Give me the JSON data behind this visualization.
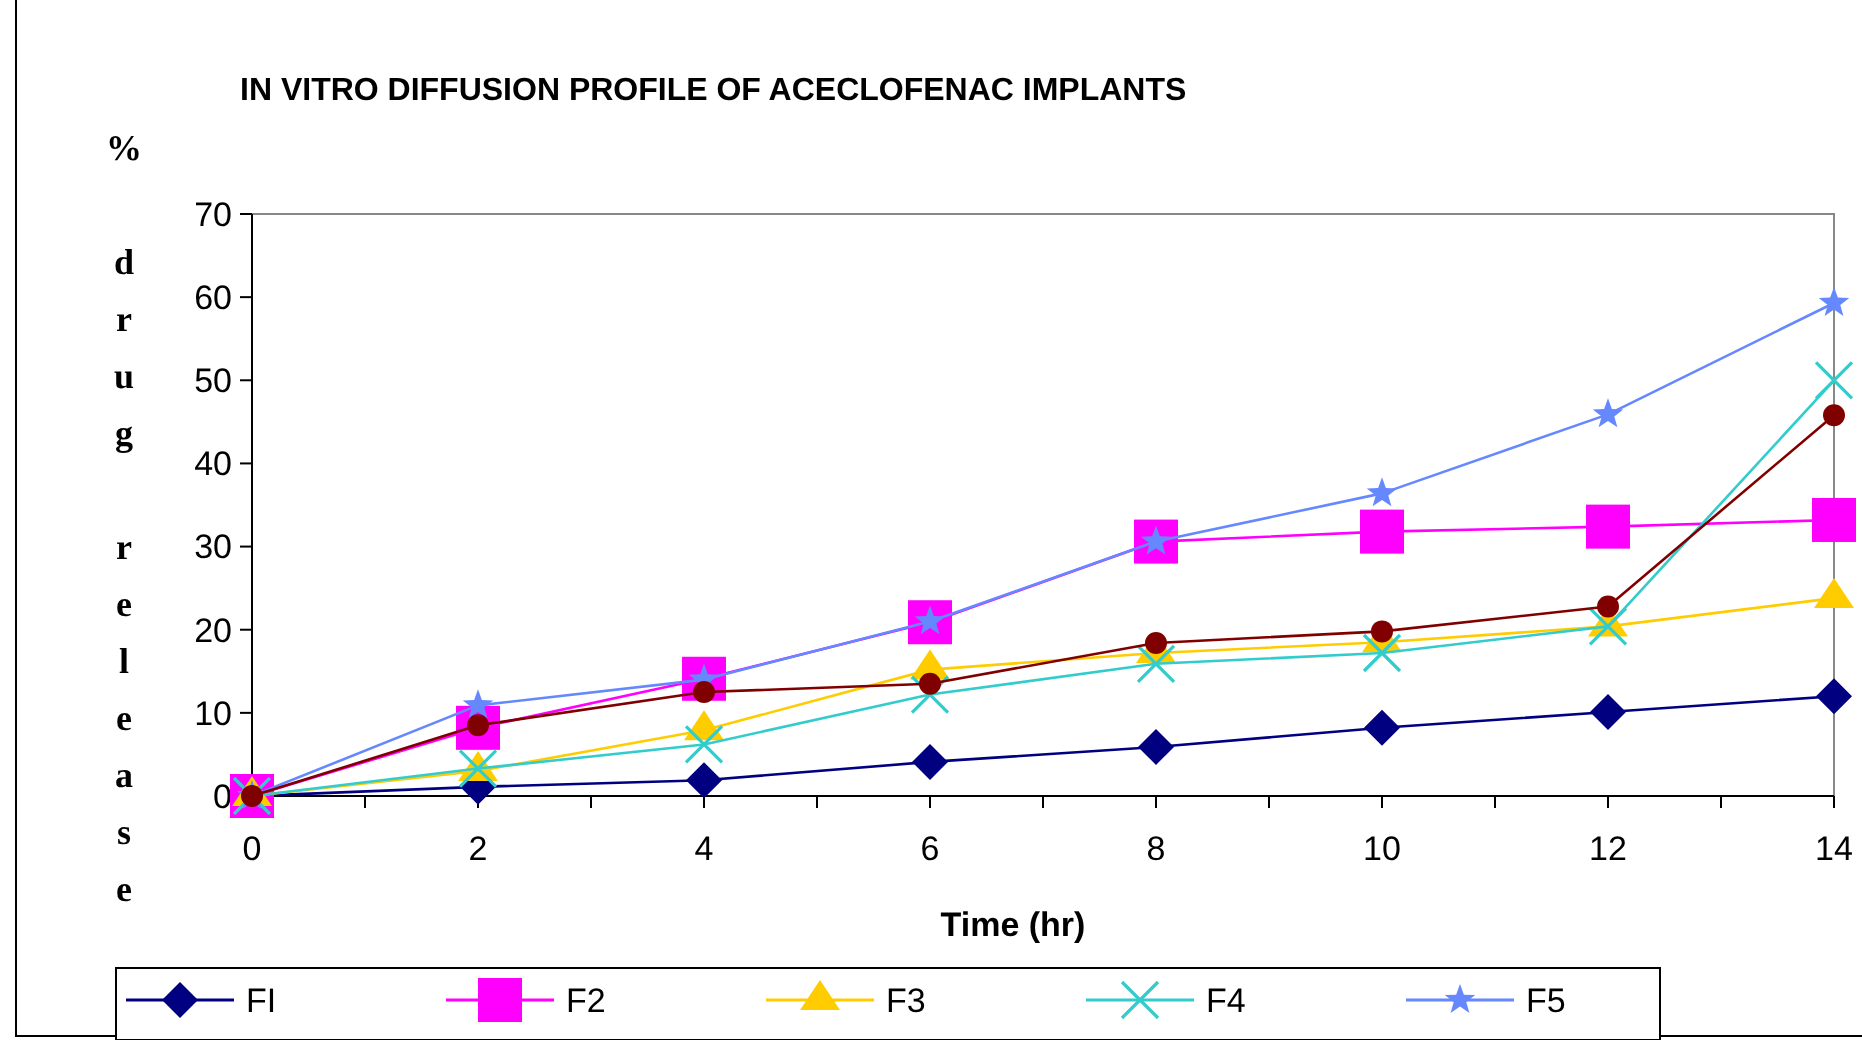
{
  "chart_data": {
    "type": "line",
    "title": "IN VITRO DIFFUSION PROFILE OF ACECLOFENAC IMPLANTS",
    "xlabel": "Time (hr)",
    "ylabel": "% drug release",
    "x": [
      0,
      2,
      4,
      6,
      8,
      10,
      12,
      14
    ],
    "xlim": [
      0,
      14
    ],
    "xticks": [
      0,
      {
        "value": 1,
        "label": null
      },
      2,
      {
        "value": 3,
        "label": null
      },
      4,
      {
        "value": 5,
        "label": null
      },
      6,
      {
        "value": 7,
        "label": null
      },
      8,
      {
        "value": 9,
        "label": null
      },
      10,
      {
        "value": 11,
        "label": null
      },
      12,
      {
        "value": 13,
        "label": null
      },
      14
    ],
    "ylim": [
      0,
      70
    ],
    "yticks": [
      0,
      10,
      20,
      30,
      40,
      50,
      60,
      70
    ],
    "grid": false,
    "legend": "bottom",
    "line_style": "solid",
    "series": [
      {
        "name": "FI",
        "color": "#000080",
        "marker": "diamond",
        "values": [
          0,
          1.1,
          1.9,
          4.1,
          5.9,
          8.2,
          10.1,
          12.0
        ]
      },
      {
        "name": "F2",
        "color": "#ff00ff",
        "marker": "square",
        "values": [
          0,
          8.2,
          14.1,
          20.9,
          30.6,
          31.8,
          32.4,
          33.2
        ]
      },
      {
        "name": "F3",
        "color": "#ffcc00",
        "marker": "triangle",
        "values": [
          0,
          3.0,
          7.9,
          15.2,
          17.2,
          18.5,
          20.4,
          23.8
        ]
      },
      {
        "name": "F4",
        "color": "#33cccc",
        "marker": "cross",
        "values": [
          0,
          3.3,
          6.2,
          12.2,
          15.9,
          17.2,
          20.4,
          50.0
        ]
      },
      {
        "name": "F5",
        "color": "#6688ff",
        "marker": "star",
        "values": [
          0,
          10.9,
          14.0,
          21.0,
          30.6,
          36.4,
          45.9,
          59.3
        ]
      },
      {
        "color": "#800000",
        "marker": "circle",
        "values": [
          0,
          8.5,
          12.5,
          13.5,
          18.4,
          19.8,
          22.8,
          45.8
        ]
      }
    ]
  }
}
